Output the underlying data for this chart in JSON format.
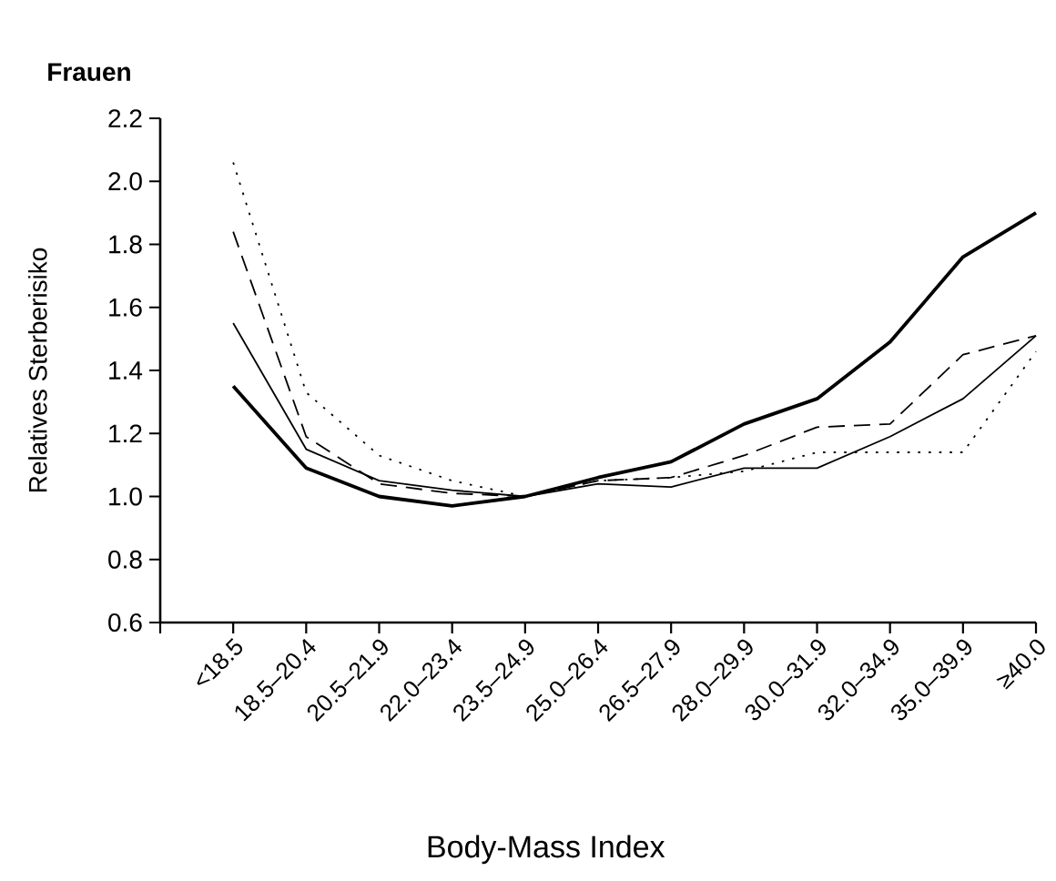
{
  "chart_data": {
    "type": "line",
    "title": "Frauen",
    "xlabel": "Body-Mass Index",
    "ylabel": "Relatives Sterberisiko",
    "categories": [
      "<18.5",
      "18.5–20.4",
      "20.5–21.9",
      "22.0–23.4",
      "23.5–24.9",
      "25.0–26.4",
      "26.5–27.9",
      "28.0–29.9",
      "30.0–31.9",
      "32.0–34.9",
      "35.0–39.9",
      "≥40.0"
    ],
    "series": [
      {
        "color": "#000000",
        "line_style": "solid",
        "values": [
          1.35,
          1.09,
          1.0,
          0.97,
          1.0,
          1.06,
          1.11,
          1.23,
          1.31,
          1.49,
          1.76,
          1.9
        ]
      },
      {
        "color": "#000000",
        "line_style": "solid",
        "values": [
          1.55,
          1.15,
          1.05,
          1.02,
          1.0,
          1.04,
          1.03,
          1.09,
          1.09,
          1.19,
          1.31,
          1.51
        ]
      },
      {
        "color": "#000000",
        "line_style": "dashed",
        "values": [
          1.84,
          1.19,
          1.04,
          1.01,
          1.0,
          1.05,
          1.06,
          1.13,
          1.22,
          1.23,
          1.45,
          1.51
        ]
      },
      {
        "color": "#000000",
        "line_style": "dotted",
        "values": [
          2.06,
          1.33,
          1.13,
          1.05,
          1.0,
          1.05,
          1.06,
          1.08,
          1.14,
          1.14,
          1.14,
          1.46
        ]
      }
    ],
    "ylim": [
      0.6,
      2.2
    ],
    "yticks": [
      0.6,
      0.8,
      {
        "value": 1.0,
        "label": "1.0"
      },
      1.2,
      1.4,
      1.6,
      1.8,
      {
        "value": 2.0,
        "label": "2.0"
      },
      2.2
    ],
    "grid": false
  }
}
